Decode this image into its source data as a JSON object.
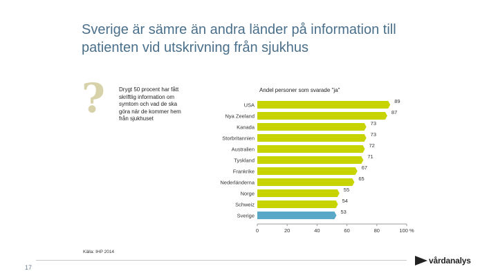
{
  "slide": {
    "title": "Sverige är sämre än andra länder på information till patienten vid utskrivning från sjukhus",
    "question_mark": "?",
    "lead_text": "Drygt 50 procent har fått skriftlig information om symtom och vad de ska göra när de kommer hem från sjukhuset",
    "source": "Källa: IHP 2014",
    "page_number": "17",
    "logo_text": "vårdanalys"
  },
  "chart_data": {
    "type": "bar",
    "orientation": "horizontal",
    "title": "Andel personer som svarade \"ja\"",
    "categories": [
      "USA",
      "Nya Zeeland",
      "Kanada",
      "Storbritannien",
      "Australien",
      "Tyskland",
      "Frankrike",
      "Nederländerna",
      "Norge",
      "Schweiz",
      "Sverige"
    ],
    "values": [
      89,
      87,
      73,
      73,
      72,
      71,
      67,
      65,
      55,
      54,
      53
    ],
    "xlim": [
      0,
      100
    ],
    "x_ticks": [
      0,
      20,
      40,
      60,
      80,
      100
    ],
    "x_tick_labels": [
      "0",
      "20",
      "40",
      "60",
      "80",
      "100 %"
    ],
    "grid": false,
    "colors": {
      "default": "#c8d400",
      "highlight": "#5aa8c8",
      "highlight_category": "Sverige",
      "axis": "#999999"
    }
  }
}
